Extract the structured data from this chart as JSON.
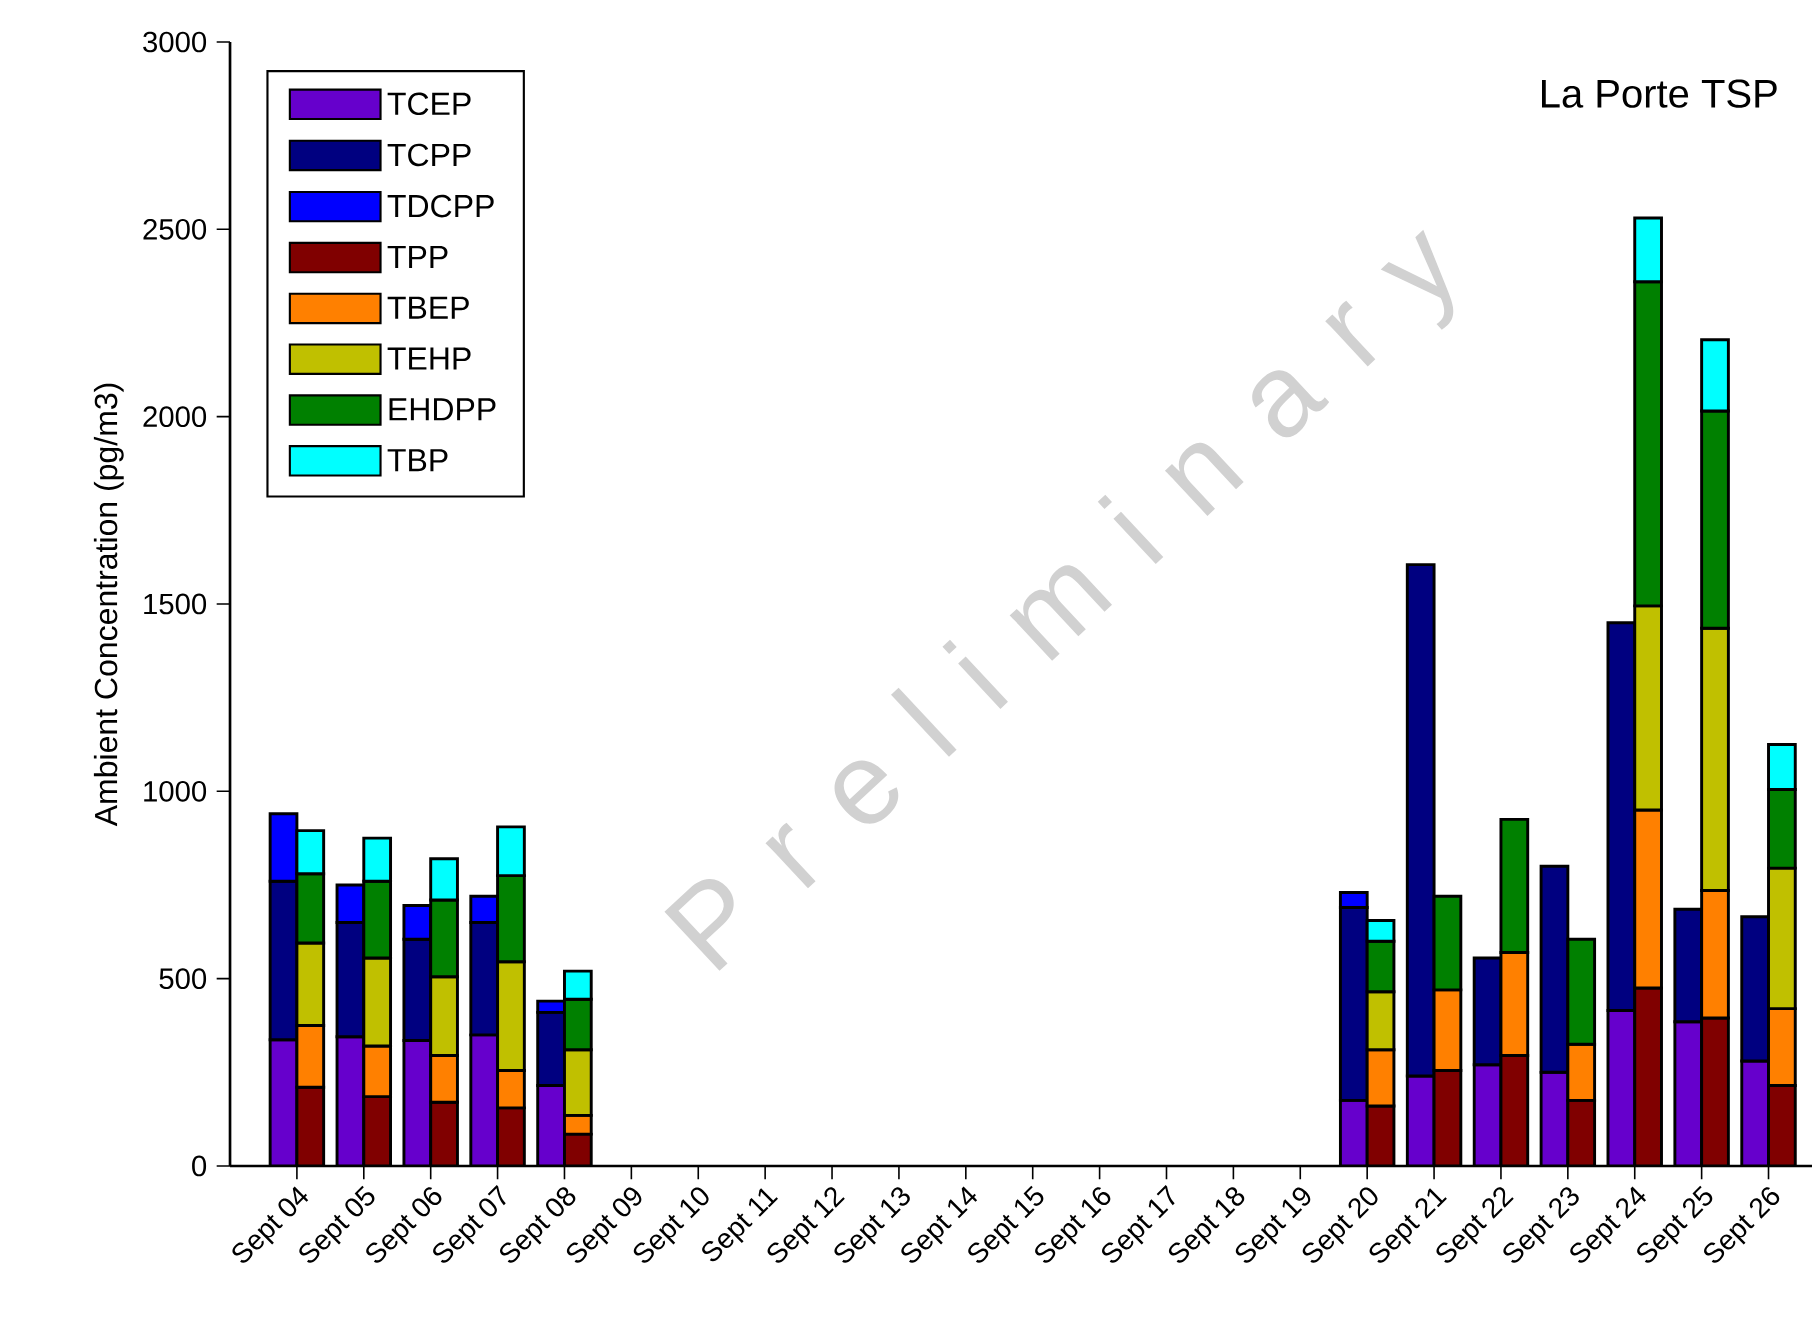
{
  "chart_data": {
    "type": "bar",
    "title": "La Porte TSP",
    "ylabel": "Ambient Concentration (pg/m3)",
    "categories": [
      "Sept 04",
      "Sept 05",
      "Sept 06",
      "Sept 07",
      "Sept 08",
      "Sept 09",
      "Sept 10",
      "Sept 11",
      "Sept 12",
      "Sept 13",
      "Sept 14",
      "Sept 15",
      "Sept 16",
      "Sept 17",
      "Sept 18",
      "Sept 19",
      "Sept 20",
      "Sept 21",
      "Sept 22",
      "Sept 23",
      "Sept 24",
      "Sept 25",
      "Sept 26"
    ],
    "series": [
      {
        "name": "TCEP",
        "color": "#6600cc",
        "values": [
          337,
          345,
          335,
          350,
          215,
          null,
          null,
          null,
          null,
          null,
          null,
          null,
          null,
          null,
          null,
          null,
          175,
          240,
          270,
          250,
          415,
          385,
          280
        ],
        "base": [
          0,
          0,
          0,
          0,
          0,
          null,
          null,
          null,
          null,
          null,
          null,
          null,
          null,
          null,
          null,
          null,
          0,
          0,
          0,
          0,
          0,
          0,
          0
        ]
      },
      {
        "name": "TCPP",
        "color": "#000080",
        "values": [
          423,
          305,
          270,
          300,
          195,
          null,
          null,
          null,
          null,
          null,
          null,
          null,
          null,
          null,
          null,
          null,
          515,
          1365,
          285,
          550,
          1035,
          300,
          385
        ],
        "base": [
          337,
          345,
          335,
          350,
          215,
          null,
          null,
          null,
          null,
          null,
          null,
          null,
          null,
          null,
          null,
          null,
          175,
          240,
          270,
          250,
          415,
          385,
          280
        ]
      },
      {
        "name": "TDCPP",
        "color": "#0000ff",
        "values": [
          180,
          100,
          90,
          70,
          30,
          null,
          null,
          null,
          null,
          null,
          null,
          null,
          null,
          null,
          null,
          null,
          40,
          null,
          null,
          null,
          null,
          null,
          null
        ],
        "base": [
          760,
          650,
          605,
          650,
          410,
          null,
          null,
          null,
          null,
          null,
          null,
          null,
          null,
          null,
          null,
          null,
          690,
          null,
          null,
          null,
          null,
          null,
          null
        ]
      },
      {
        "name": "TPP",
        "color": "#800000",
        "values": [
          210,
          185,
          170,
          155,
          85,
          null,
          null,
          null,
          null,
          null,
          null,
          null,
          null,
          null,
          null,
          null,
          160,
          255,
          295,
          175,
          475,
          395,
          215
        ],
        "base": [
          0,
          0,
          0,
          0,
          0,
          null,
          null,
          null,
          null,
          null,
          null,
          null,
          null,
          null,
          null,
          null,
          0,
          0,
          0,
          0,
          0,
          0,
          0
        ]
      },
      {
        "name": "TBEP",
        "color": "#ff8000",
        "values": [
          165,
          135,
          125,
          100,
          50,
          null,
          null,
          null,
          null,
          null,
          null,
          null,
          null,
          null,
          null,
          null,
          150,
          215,
          275,
          150,
          475,
          340,
          205
        ],
        "base": [
          210,
          185,
          170,
          155,
          85,
          null,
          null,
          null,
          null,
          null,
          null,
          null,
          null,
          null,
          null,
          null,
          160,
          255,
          295,
          175,
          475,
          395,
          215
        ]
      },
      {
        "name": "TEHP",
        "color": "#c0c000",
        "values": [
          220,
          235,
          210,
          290,
          175,
          null,
          null,
          null,
          null,
          null,
          null,
          null,
          null,
          null,
          null,
          null,
          155,
          null,
          null,
          null,
          545,
          700,
          375
        ],
        "base": [
          375,
          320,
          295,
          255,
          135,
          null,
          null,
          null,
          null,
          null,
          null,
          null,
          null,
          null,
          null,
          null,
          310,
          null,
          null,
          null,
          950,
          735,
          420
        ]
      },
      {
        "name": "EHDPP",
        "color": "#008000",
        "values": [
          185,
          205,
          205,
          230,
          135,
          null,
          null,
          null,
          null,
          null,
          null,
          null,
          null,
          null,
          null,
          null,
          135,
          250,
          355,
          280,
          865,
          580,
          210
        ],
        "base": [
          595,
          555,
          505,
          545,
          310,
          null,
          null,
          null,
          null,
          null,
          null,
          null,
          null,
          null,
          null,
          null,
          465,
          470,
          570,
          325,
          1495,
          1435,
          795
        ]
      },
      {
        "name": "TBP",
        "color": "#00ffff",
        "values": [
          115,
          115,
          110,
          130,
          75,
          null,
          null,
          null,
          null,
          null,
          null,
          null,
          null,
          null,
          null,
          null,
          55,
          null,
          null,
          null,
          170,
          190,
          120
        ],
        "base": [
          780,
          760,
          710,
          775,
          445,
          null,
          null,
          null,
          null,
          null,
          null,
          null,
          null,
          null,
          null,
          null,
          600,
          null,
          null,
          null,
          2360,
          2015,
          1005
        ]
      }
    ],
    "ylim": [
      0,
      3000
    ],
    "yticks": [
      0,
      500,
      1000,
      1500,
      2000,
      2500,
      3000
    ],
    "grid": false,
    "legend": "top left",
    "annotations": [
      "P r e l i m i n a r y"
    ]
  }
}
